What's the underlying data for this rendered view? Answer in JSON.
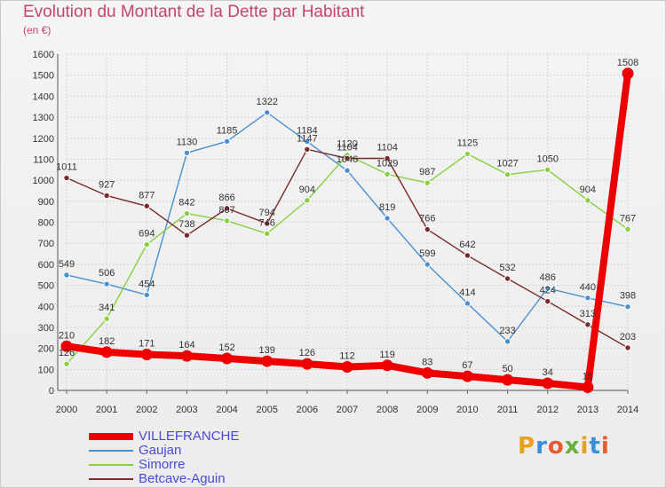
{
  "header": {
    "title": "Evolution du Montant de la Dette par Habitant",
    "subtitle": "(en €)"
  },
  "brand": {
    "text": "Proxiti",
    "colors": [
      "#e8a020",
      "#3a8fd8",
      "#e85a30",
      "#6ab040"
    ]
  },
  "chart_data": {
    "type": "line",
    "title": "Evolution du Montant de la Dette par Habitant",
    "subtitle": "(en €)",
    "x": [
      2000,
      2001,
      2002,
      2003,
      2004,
      2005,
      2006,
      2007,
      2008,
      2009,
      2010,
      2011,
      2012,
      2013,
      2014
    ],
    "ylim": [
      0,
      1600
    ],
    "yticks": [
      0,
      100,
      200,
      300,
      400,
      500,
      600,
      700,
      800,
      900,
      1000,
      1100,
      1200,
      1300,
      1400,
      1500,
      1600
    ],
    "grid": true,
    "legend_position": "bottom-left",
    "series": [
      {
        "name": "VILLEFRANCHE",
        "color": "#ee0000",
        "emphasis": true,
        "values": [
          210,
          182,
          171,
          164,
          152,
          139,
          126,
          112,
          119,
          83,
          67,
          50,
          34,
          15,
          1508
        ],
        "labels": [
          "210",
          "182",
          "171",
          "164",
          "152",
          "139",
          "126",
          "112",
          "119",
          "83",
          "67",
          "50",
          "34",
          "15",
          "1508"
        ]
      },
      {
        "name": "Gaujan",
        "color": "#4a90d0",
        "values": [
          549,
          506,
          454,
          1130,
          1185,
          1322,
          1184,
          1046,
          819,
          599,
          414,
          233,
          486,
          440,
          398
        ],
        "labels": [
          "549",
          "506",
          "454",
          "1130",
          "1185",
          "1322",
          "1184",
          "1046",
          "819",
          "599",
          "414",
          "233",
          "486",
          "440",
          "398"
        ]
      },
      {
        "name": "Simorre",
        "color": "#88d040",
        "values": [
          126,
          341,
          694,
          842,
          807,
          746,
          904,
          1120,
          1029,
          987,
          1125,
          1027,
          1050,
          904,
          767
        ],
        "labels": [
          "126",
          "341",
          "694",
          "842",
          "807",
          "746",
          "904",
          "1120",
          "1029",
          "987",
          "1125",
          "1027",
          "1050",
          "904",
          "767"
        ]
      },
      {
        "name": "Betcave-Aguin",
        "color": "#7a2a2a",
        "values": [
          1011,
          927,
          877,
          738,
          866,
          794,
          1147,
          1104,
          1104,
          766,
          642,
          532,
          424,
          313,
          203
        ],
        "labels": [
          "1011",
          "927",
          "877",
          "738",
          "866",
          "794",
          "1147",
          "1104",
          "1104",
          "766",
          "642",
          "532",
          "424",
          "313",
          "203"
        ]
      }
    ]
  }
}
